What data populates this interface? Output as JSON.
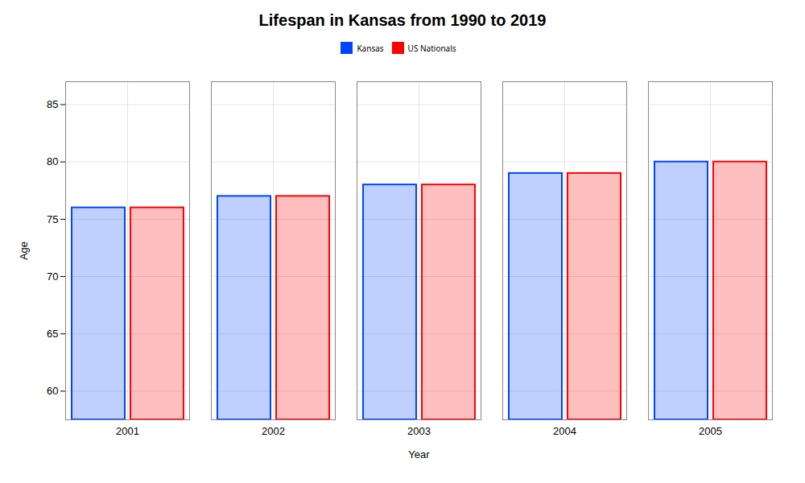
{
  "chart_data": {
    "type": "bar",
    "title": "Lifespan in Kansas from 1990 to 2019",
    "xlabel": "Year",
    "ylabel": "Age",
    "categories": [
      "2001",
      "2002",
      "2003",
      "2004",
      "2005"
    ],
    "series": [
      {
        "name": "Kansas",
        "color": "#0044ff",
        "values": [
          76.0,
          77.0,
          78.0,
          79.0,
          80.0
        ]
      },
      {
        "name": "US Nationals",
        "color": "#ff0000",
        "values": [
          76.0,
          77.0,
          78.0,
          79.0,
          80.0
        ]
      }
    ],
    "ylim": [
      57.5,
      87
    ],
    "yticks": [
      60,
      65,
      70,
      75,
      80,
      85
    ],
    "grid": true,
    "legend": "top"
  }
}
